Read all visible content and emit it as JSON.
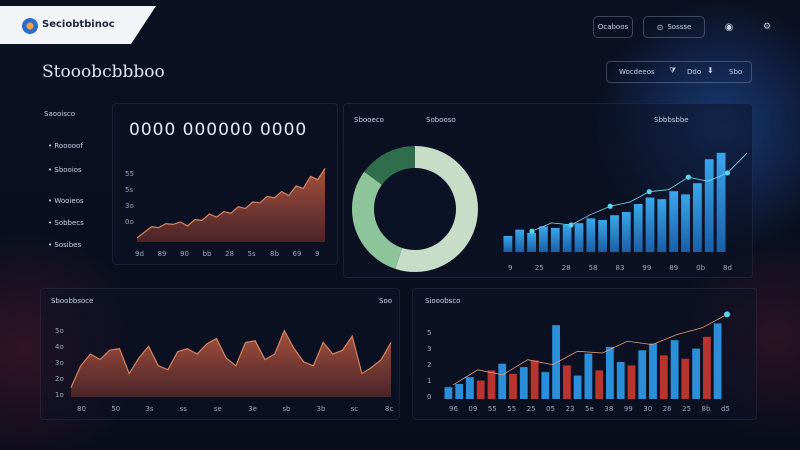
{
  "app": {
    "name": "Seciobtbinoc"
  },
  "header": {
    "btn1_label": "Ocaboos",
    "btn2_label": "Sossse"
  },
  "page": {
    "title": "Stooobcbbboo"
  },
  "toolbar": {
    "label": "Wocdeeos",
    "mid": "Ddo",
    "right": "Sbo"
  },
  "sidebar": {
    "heading": "Saooisco",
    "items": [
      {
        "label": "Rooooof"
      },
      {
        "label": "Sbooios"
      },
      {
        "label": "Wooieos"
      },
      {
        "label": "Sobbecs"
      },
      {
        "label": "Sosibes"
      }
    ]
  },
  "kpi": {
    "value": "0000 000000 0000"
  },
  "area1": {
    "yticks": [
      "55",
      "5s",
      "3o",
      "0o"
    ],
    "xticks": [
      "9d",
      "89",
      "90",
      "bb",
      "28",
      "5s",
      "8b",
      "69",
      "9"
    ],
    "values": [
      5,
      12,
      19,
      18,
      23,
      22,
      25,
      20,
      28,
      27,
      35,
      31,
      38,
      36,
      44,
      42,
      50,
      49,
      57,
      55,
      63,
      58,
      70,
      67,
      82,
      78,
      92
    ]
  },
  "donut": {
    "labels": [
      "Sbooeco",
      "Sobooso"
    ],
    "slices": [
      {
        "value": 55,
        "color": "#c8ddc8"
      },
      {
        "value": 30,
        "color": "#8dc49a"
      },
      {
        "value": 15,
        "color": "#2f6e4c"
      }
    ]
  },
  "bars1": {
    "title": "Sbbbsbbe",
    "xticks": [
      "9",
      "25",
      "28",
      "58",
      "83",
      "99",
      "89",
      "0b",
      "8d"
    ],
    "values": [
      10,
      14,
      12,
      16,
      15,
      17,
      18,
      21,
      20,
      23,
      25,
      30,
      34,
      33,
      38,
      36,
      43,
      58,
      62
    ],
    "line": [
      20,
      28,
      26,
      36,
      44,
      48,
      58,
      60,
      72,
      68,
      76,
      95
    ]
  },
  "area2": {
    "title": "Sboobbsoce",
    "right": "Soo",
    "yticks": [
      "5o",
      "4o",
      "3o",
      "2o",
      "1o"
    ],
    "xticks": [
      "80",
      "50",
      "3s",
      "ss",
      "se",
      "3e",
      "sb",
      "3b",
      "sc",
      "8c"
    ],
    "values": [
      12,
      40,
      55,
      48,
      60,
      62,
      30,
      50,
      65,
      40,
      35,
      58,
      62,
      55,
      68,
      75,
      50,
      40,
      70,
      72,
      48,
      55,
      85,
      62,
      45,
      40,
      70,
      55,
      60,
      78,
      30,
      38,
      48,
      70
    ]
  },
  "bars2": {
    "title": "Siooobsco",
    "yticks": [
      "5",
      "3",
      "2",
      "1",
      "0"
    ],
    "xticks": [
      "96",
      "09",
      "55",
      "55",
      "25",
      "05",
      "23",
      "5e",
      "38",
      "99",
      "30",
      "26",
      "25",
      "8b",
      "d5"
    ],
    "bars": [
      {
        "v": 14,
        "c": "b"
      },
      {
        "v": 18,
        "c": "b"
      },
      {
        "v": 26,
        "c": "b"
      },
      {
        "v": 22,
        "c": "r"
      },
      {
        "v": 34,
        "c": "r"
      },
      {
        "v": 42,
        "c": "b"
      },
      {
        "v": 30,
        "c": "r"
      },
      {
        "v": 38,
        "c": "b"
      },
      {
        "v": 46,
        "c": "r"
      },
      {
        "v": 32,
        "c": "b"
      },
      {
        "v": 88,
        "c": "b"
      },
      {
        "v": 40,
        "c": "r"
      },
      {
        "v": 28,
        "c": "b"
      },
      {
        "v": 54,
        "c": "b"
      },
      {
        "v": 34,
        "c": "r"
      },
      {
        "v": 62,
        "c": "b"
      },
      {
        "v": 44,
        "c": "b"
      },
      {
        "v": 40,
        "c": "r"
      },
      {
        "v": 58,
        "c": "b"
      },
      {
        "v": 66,
        "c": "b"
      },
      {
        "v": 52,
        "c": "r"
      },
      {
        "v": 70,
        "c": "b"
      },
      {
        "v": 48,
        "c": "r"
      },
      {
        "v": 60,
        "c": "b"
      },
      {
        "v": 74,
        "c": "r"
      },
      {
        "v": 90,
        "c": "b"
      }
    ],
    "line": [
      12,
      30,
      24,
      42,
      36,
      52,
      50,
      64,
      60,
      72,
      80,
      96
    ]
  },
  "colors": {
    "area_fill": "#8a3f33",
    "area_line": "#d8845c",
    "bar_blue": "#2a8fd8",
    "bar_red": "#b8352f",
    "accent_cyan": "#58d6f0"
  }
}
